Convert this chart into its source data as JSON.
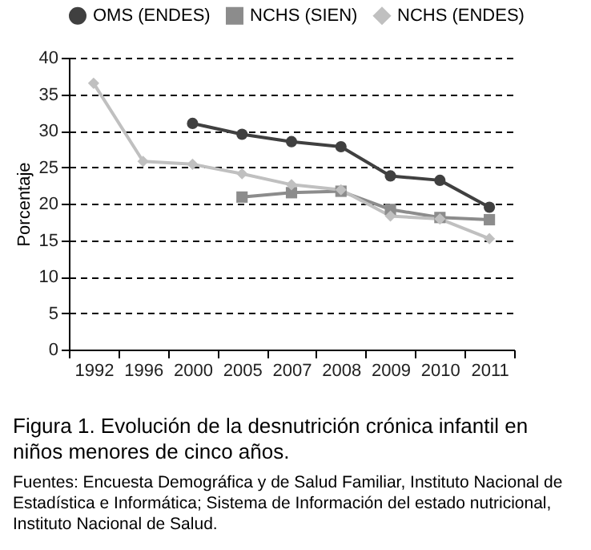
{
  "chart_data": {
    "type": "line",
    "title": "Figura 1. Evolución de la desnutrición crónica infantil en niños menores de cinco años.",
    "annotations": [
      "Fuentes: Encuesta Demográfica y de Salud Familiar, Instituto Nacional de Estadística e Informática; Sistema de Información del estado nutricional, Instituto Nacional de Salud."
    ],
    "ylabel": "Porcentaje",
    "categories": [
      "1992",
      "1996",
      "2000",
      "2005",
      "2007",
      "2008",
      "2009",
      "2010",
      "2011"
    ],
    "series": [
      {
        "name": "OMS (ENDES)",
        "color": "#404040",
        "marker": "circle",
        "values": [
          null,
          null,
          31.0,
          29.5,
          28.5,
          27.8,
          23.8,
          23.2,
          19.5
        ]
      },
      {
        "name": "NCHS (SIEN)",
        "color": "#8c8c8c",
        "marker": "square",
        "values": [
          null,
          null,
          null,
          20.9,
          21.5,
          21.7,
          19.2,
          18.1,
          17.8
        ]
      },
      {
        "name": "NCHS (ENDES)",
        "color": "#c0c0c0",
        "marker": "diamond",
        "values": [
          36.5,
          25.8,
          25.4,
          24.1,
          22.6,
          21.9,
          18.3,
          17.9,
          15.2
        ]
      }
    ],
    "ylim": [
      0,
      40
    ],
    "yticks": [
      0,
      5,
      10,
      15,
      20,
      25,
      30,
      35,
      40
    ],
    "grid": "y",
    "legend": "top",
    "line_style": "solid"
  }
}
